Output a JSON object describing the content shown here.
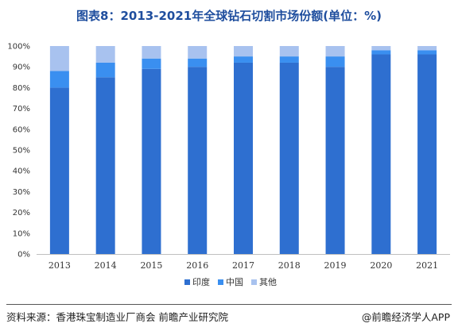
{
  "title": "图表8：2013-2021年全球钻石切割市场份额(单位：%)",
  "chart_data": {
    "type": "bar",
    "stacked": true,
    "categories": [
      "2013",
      "2014",
      "2015",
      "2016",
      "2017",
      "2018",
      "2019",
      "2020",
      "2021"
    ],
    "series": [
      {
        "name": "印度",
        "color": "#2e6fd0",
        "values": [
          80,
          85,
          89,
          90,
          92,
          92,
          90,
          96,
          96
        ]
      },
      {
        "name": "中国",
        "color": "#3a8ff0",
        "values": [
          8,
          7,
          5,
          4,
          3,
          3,
          5,
          2,
          2
        ]
      },
      {
        "name": "其他",
        "color": "#a8c2ef",
        "values": [
          12,
          8,
          6,
          6,
          5,
          5,
          5,
          2,
          2
        ]
      }
    ],
    "yticks": [
      "0%",
      "10%",
      "20%",
      "30%",
      "40%",
      "50%",
      "60%",
      "70%",
      "80%",
      "90%",
      "100%"
    ],
    "ylim": [
      0,
      100
    ],
    "grid": false,
    "legend_position": "bottom"
  },
  "footer": {
    "source": "资料来源：香港珠宝制造业厂商会 前瞻产业研究院",
    "brand": "@前瞻经济学人APP"
  }
}
